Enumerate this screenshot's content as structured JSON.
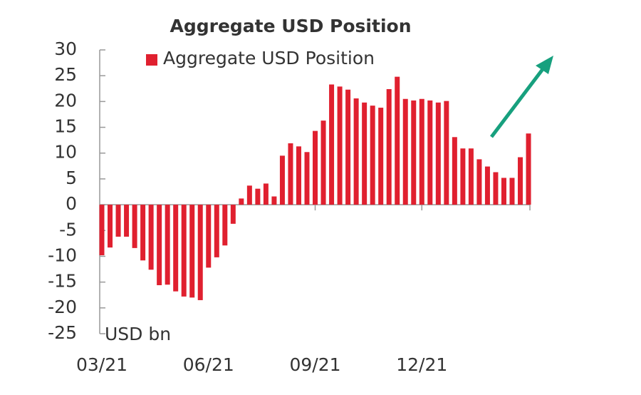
{
  "chart_data": {
    "type": "bar",
    "title": "Aggregate USD Position",
    "annotation": "USD bn",
    "series": [
      {
        "name": "Aggregate USD Position",
        "color": "#e0202f",
        "values": [
          -9.8,
          -8.3,
          -6.2,
          -6.2,
          -8.4,
          -10.8,
          -12.6,
          -15.6,
          -15.5,
          -16.8,
          -17.8,
          -18,
          -18.5,
          -12.2,
          -10.2,
          -7.9,
          -3.7,
          1.2,
          3.7,
          3.1,
          4.1,
          1.6,
          9.5,
          11.9,
          11.3,
          10.2,
          14.3,
          16.3,
          23.3,
          22.9,
          22.3,
          20.6,
          19.8,
          19.2,
          18.8,
          22.4,
          24.8,
          20.5,
          20.2,
          20.5,
          20.2,
          19.8,
          20.1,
          13.1,
          10.9,
          10.9,
          8.8,
          7.4,
          6.3,
          5.2,
          5.2,
          9.2,
          13.8
        ]
      }
    ],
    "categories": [
      "03/21",
      null,
      null,
      null,
      null,
      null,
      null,
      null,
      null,
      null,
      null,
      null,
      null,
      "06/21",
      null,
      null,
      null,
      null,
      null,
      null,
      null,
      null,
      null,
      null,
      null,
      null,
      "09/21",
      null,
      null,
      null,
      null,
      null,
      null,
      null,
      null,
      null,
      null,
      null,
      null,
      "12/21",
      null,
      null,
      null,
      null,
      null,
      null,
      null,
      null,
      null,
      null,
      null,
      null,
      null
    ],
    "ylim": [
      -25,
      30
    ],
    "yticks": [
      -25,
      -20,
      -15,
      -10,
      -5,
      0,
      5,
      10,
      15,
      20,
      25,
      30
    ],
    "grid": false
  }
}
